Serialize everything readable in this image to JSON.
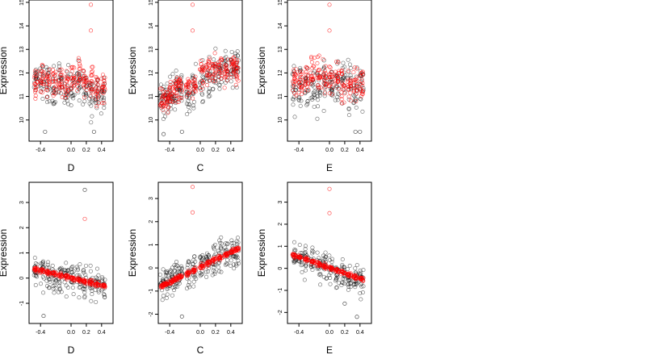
{
  "chart_data": [
    {
      "type": "scatter",
      "panel": "top-left",
      "xlabel": "D",
      "ylabel": "Expression",
      "xlim": [
        -0.55,
        0.55
      ],
      "ylim": [
        9.1,
        15.1
      ],
      "xticks": [
        -0.4,
        0.0,
        0.2,
        0.4
      ],
      "xtick_labels": [
        "-0.4",
        "0.0",
        "0.2",
        "0.4"
      ],
      "yticks": [
        10,
        11,
        12,
        13,
        14,
        15
      ],
      "ytick_labels": [
        "10",
        "11",
        "12",
        "13",
        "14",
        "15"
      ],
      "x_levels": [
        -0.46,
        -0.38,
        -0.3,
        -0.22,
        -0.14,
        -0.06,
        0.02,
        0.1,
        0.18,
        0.26,
        0.34,
        0.42
      ],
      "series": [
        {
          "color": "#000000",
          "level_mean": [
            11.7,
            11.6,
            11.5,
            11.3,
            11.5,
            11.4,
            11.5,
            11.6,
            11.4,
            11.2,
            11.1,
            11.0
          ],
          "spread": 0.6
        },
        {
          "color": "#ff0000",
          "level_mean": [
            11.6,
            11.8,
            11.6,
            11.7,
            11.6,
            11.5,
            11.7,
            11.8,
            11.5,
            11.6,
            11.3,
            11.4
          ],
          "spread": 0.5
        }
      ],
      "outliers": [
        {
          "x": 0.26,
          "y": 14.9,
          "color": "#ff0000"
        },
        {
          "x": 0.26,
          "y": 13.8,
          "color": "#ff0000"
        },
        {
          "x": -0.34,
          "y": 9.5,
          "color": "#000000"
        },
        {
          "x": 0.3,
          "y": 9.5,
          "color": "#000000"
        }
      ]
    },
    {
      "type": "scatter",
      "panel": "top-middle",
      "xlabel": "C",
      "ylabel": "Expression",
      "xlim": [
        -0.55,
        0.55
      ],
      "ylim": [
        9.1,
        15.1
      ],
      "xticks": [
        -0.4,
        0.0,
        0.2,
        0.4
      ],
      "xtick_labels": [
        "-0.4",
        "0.0",
        "0.2",
        "0.4"
      ],
      "yticks": [
        10,
        11,
        12,
        13,
        14,
        15
      ],
      "ytick_labels": [
        "10",
        "11",
        "12",
        "13",
        "14",
        "15"
      ],
      "x_levels": [
        -0.5,
        -0.44,
        -0.38,
        -0.32,
        -0.26,
        -0.16,
        -0.08,
        0.02,
        0.1,
        0.18,
        0.26,
        0.34,
        0.42,
        0.48
      ],
      "series": [
        {
          "color": "#000000",
          "level_mean": [
            10.9,
            11.0,
            11.1,
            11.2,
            11.3,
            11.0,
            11.5,
            11.6,
            11.9,
            12.0,
            12.1,
            12.2,
            12.1,
            12.3
          ],
          "spread": 0.55
        },
        {
          "color": "#ff0000",
          "level_mean": [
            10.8,
            10.9,
            11.1,
            11.3,
            11.4,
            11.5,
            11.5,
            12.0,
            12.1,
            12.2,
            12.2,
            12.1,
            12.3,
            12.1
          ],
          "spread": 0.4
        }
      ],
      "outliers": [
        {
          "x": -0.1,
          "y": 14.9,
          "color": "#ff0000"
        },
        {
          "x": -0.1,
          "y": 13.8,
          "color": "#ff0000"
        },
        {
          "x": -0.48,
          "y": 9.4,
          "color": "#000000"
        },
        {
          "x": -0.24,
          "y": 9.5,
          "color": "#000000"
        }
      ]
    },
    {
      "type": "scatter",
      "panel": "top-right",
      "xlabel": "E",
      "ylabel": "Expression",
      "xlim": [
        -0.55,
        0.55
      ],
      "ylim": [
        9.1,
        15.1
      ],
      "xticks": [
        -0.4,
        0.0,
        0.2,
        0.4
      ],
      "xtick_labels": [
        "-0.4",
        "0.0",
        "0.2",
        "0.4"
      ],
      "yticks": [
        10,
        11,
        12,
        13,
        14,
        15
      ],
      "ytick_labels": [
        "10",
        "11",
        "12",
        "13",
        "14",
        "15"
      ],
      "x_levels": [
        -0.46,
        -0.38,
        -0.3,
        -0.22,
        -0.14,
        -0.06,
        0.02,
        0.1,
        0.18,
        0.26,
        0.34,
        0.42
      ],
      "series": [
        {
          "color": "#000000",
          "level_mean": [
            11.6,
            11.5,
            11.6,
            11.4,
            11.3,
            11.6,
            11.5,
            11.4,
            11.6,
            11.4,
            11.3,
            11.4
          ],
          "spread": 0.65
        },
        {
          "color": "#ff0000",
          "level_mean": [
            11.7,
            11.6,
            11.8,
            12.1,
            11.9,
            11.8,
            11.6,
            11.9,
            11.5,
            11.4,
            11.6,
            11.5
          ],
          "spread": 0.5
        }
      ],
      "outliers": [
        {
          "x": 0.0,
          "y": 14.9,
          "color": "#ff0000"
        },
        {
          "x": 0.0,
          "y": 13.8,
          "color": "#ff0000"
        },
        {
          "x": 0.34,
          "y": 9.5,
          "color": "#000000"
        },
        {
          "x": 0.4,
          "y": 9.5,
          "color": "#000000"
        }
      ]
    },
    {
      "type": "scatter",
      "panel": "bottom-left",
      "xlabel": "D",
      "ylabel": "Expression",
      "xlim": [
        -0.55,
        0.55
      ],
      "ylim": [
        -1.8,
        3.8
      ],
      "xticks": [
        -0.4,
        0.0,
        0.2,
        0.4
      ],
      "xtick_labels": [
        "-0.4",
        "0.0",
        "0.2",
        "0.4"
      ],
      "yticks": [
        -1,
        0,
        1,
        2,
        3
      ],
      "ytick_labels": [
        "-1",
        "0",
        "1",
        "2",
        "3"
      ],
      "x_levels": [
        -0.46,
        -0.38,
        -0.3,
        -0.22,
        -0.14,
        -0.06,
        0.02,
        0.1,
        0.18,
        0.26,
        0.34,
        0.42
      ],
      "series": [
        {
          "color": "#000000",
          "level_mean": [
            0.3,
            0.25,
            0.15,
            0.1,
            0.1,
            0.0,
            0.0,
            -0.1,
            -0.1,
            -0.2,
            -0.25,
            -0.3
          ],
          "spread": 0.45
        },
        {
          "color": "#ff0000",
          "trend": [
            0.38,
            -0.36
          ],
          "spread": 0.06
        }
      ],
      "outliers": [
        {
          "x": 0.18,
          "y": 3.5,
          "color": "#000000"
        },
        {
          "x": 0.18,
          "y": 2.35,
          "color": "#ff0000"
        },
        {
          "x": -0.36,
          "y": -1.5,
          "color": "#000000"
        }
      ]
    },
    {
      "type": "scatter",
      "panel": "bottom-middle",
      "xlabel": "C",
      "ylabel": "Expression",
      "xlim": [
        -0.55,
        0.55
      ],
      "ylim": [
        -2.4,
        3.7
      ],
      "xticks": [
        -0.4,
        0.0,
        0.2,
        0.4
      ],
      "xtick_labels": [
        "-0.4",
        "0.0",
        "0.2",
        "0.4"
      ],
      "yticks": [
        -2,
        -1,
        0,
        1,
        2,
        3
      ],
      "ytick_labels": [
        "-2",
        "-1",
        "0",
        "1",
        "2",
        "3"
      ],
      "x_levels": [
        -0.5,
        -0.44,
        -0.38,
        -0.32,
        -0.26,
        -0.16,
        -0.08,
        0.02,
        0.1,
        0.18,
        0.26,
        0.34,
        0.42,
        0.48
      ],
      "series": [
        {
          "color": "#000000",
          "level_mean": [
            -0.7,
            -0.6,
            -0.5,
            -0.4,
            -0.3,
            -0.2,
            -0.05,
            0.1,
            0.25,
            0.4,
            0.5,
            0.6,
            0.7,
            0.8
          ],
          "spread": 0.45
        },
        {
          "color": "#ff0000",
          "trend": [
            -0.78,
            0.85
          ],
          "spread": 0.07
        }
      ],
      "outliers": [
        {
          "x": -0.1,
          "y": 3.5,
          "color": "#ff0000"
        },
        {
          "x": -0.1,
          "y": 2.4,
          "color": "#ff0000"
        },
        {
          "x": -0.24,
          "y": -2.1,
          "color": "#000000"
        }
      ]
    },
    {
      "type": "scatter",
      "panel": "bottom-right",
      "xlabel": "E",
      "ylabel": "Expression",
      "xlim": [
        -0.55,
        0.55
      ],
      "ylim": [
        -2.5,
        3.9
      ],
      "xticks": [
        -0.4,
        0.0,
        0.2,
        0.4
      ],
      "xtick_labels": [
        "-0.4",
        "0.0",
        "0.2",
        "0.4"
      ],
      "yticks": [
        -2,
        -1,
        0,
        1,
        2,
        3
      ],
      "ytick_labels": [
        "-2",
        "-1",
        "0",
        "1",
        "2",
        "3"
      ],
      "x_levels": [
        -0.46,
        -0.38,
        -0.3,
        -0.22,
        -0.14,
        -0.06,
        0.02,
        0.1,
        0.18,
        0.26,
        0.34,
        0.42
      ],
      "series": [
        {
          "color": "#000000",
          "level_mean": [
            0.55,
            0.5,
            0.4,
            0.3,
            0.2,
            0.1,
            0.0,
            -0.1,
            -0.2,
            -0.35,
            -0.45,
            -0.55
          ],
          "spread": 0.45
        },
        {
          "color": "#ff0000",
          "trend": [
            0.62,
            -0.58
          ],
          "spread": 0.06
        }
      ],
      "outliers": [
        {
          "x": 0.0,
          "y": 3.6,
          "color": "#ff0000"
        },
        {
          "x": 0.0,
          "y": 2.5,
          "color": "#ff0000"
        },
        {
          "x": 0.36,
          "y": -2.2,
          "color": "#000000"
        },
        {
          "x": 0.2,
          "y": -1.6,
          "color": "#000000"
        }
      ]
    }
  ]
}
